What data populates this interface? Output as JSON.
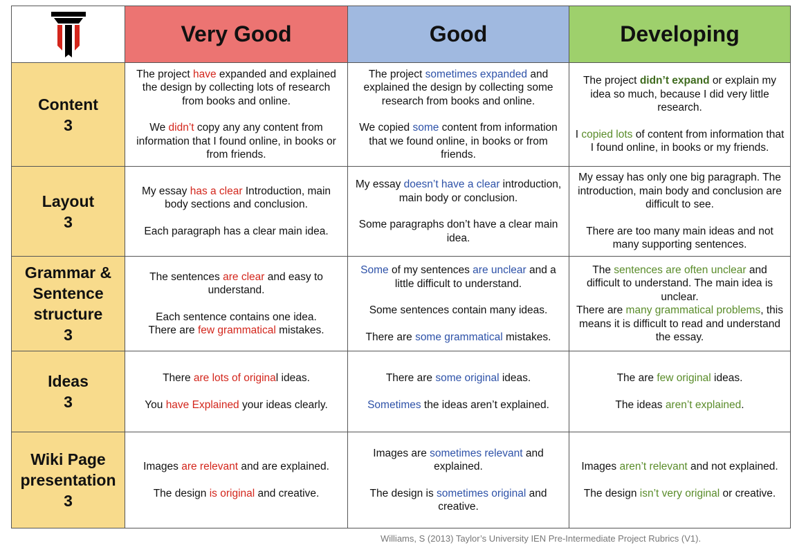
{
  "header": {
    "levels": [
      "Very Good",
      "Good",
      "Developing"
    ]
  },
  "criteria": [
    {
      "name_lines": [
        "Content"
      ],
      "score": "3"
    },
    {
      "name_lines": [
        "Layout"
      ],
      "score": "3"
    },
    {
      "name_lines": [
        "Grammar &",
        "Sentence",
        "structure"
      ],
      "score": "3"
    },
    {
      "name_lines": [
        "Ideas"
      ],
      "score": "3"
    },
    {
      "name_lines": [
        "Wiki Page",
        "presentation"
      ],
      "score": "3"
    }
  ],
  "cells": {
    "content": {
      "very_good": {
        "p1": [
          "The project ",
          "have",
          " expanded and explained the design by collecting lots of research from books and online."
        ],
        "p2": [
          "We ",
          "didn’t",
          " copy any any content from information that I found online, in books or from friends."
        ]
      },
      "good": {
        "p1": [
          "The project ",
          "sometimes expanded",
          " and explained the design by collecting some research from books and online."
        ],
        "p2": [
          "We copied ",
          "some",
          " content from information that we found online, in books or from friends."
        ]
      },
      "developing": {
        "p1": [
          "The project ",
          "didn’t expand",
          " or explain my idea so much, because I did very little research."
        ],
        "p2": [
          "I ",
          "copied lots",
          " of content from information that I found online, in books or my friends."
        ]
      }
    },
    "layout": {
      "very_good": {
        "p1": [
          "My essay ",
          "has a clear",
          " Introduction, main body sections and conclusion."
        ],
        "p2": "Each paragraph has a clear main idea."
      },
      "good": {
        "p1": [
          "My essay ",
          "doesn’t have a clear",
          " introduction, main body or conclusion."
        ],
        "p2": "Some paragraphs don’t have a clear main idea."
      },
      "developing": {
        "p1": "My essay has only one big paragraph. The introduction, main body and conclusion are difficult to see.",
        "p2": "There are too many main ideas and not many supporting sentences."
      }
    },
    "grammar": {
      "very_good": {
        "p1": [
          "The sentences ",
          "are clear",
          " and easy to understand."
        ],
        "p2a": "Each sentence contains one idea.",
        "p2b": [
          "There are ",
          "few grammatical",
          " mistakes."
        ]
      },
      "good": {
        "p1": [
          "Some",
          " of my sentences ",
          "are unclear",
          " and a little difficult to understand."
        ],
        "p2": "Some sentences contain many ideas.",
        "p3": [
          "There are ",
          "some grammatical",
          " mistakes."
        ]
      },
      "developing": {
        "p1": [
          "The ",
          "sentences are often unclear",
          " and difficult to understand. The main idea is unclear."
        ],
        "p2": [
          "There are ",
          "many grammatical problems",
          ", this means it is difficult to read and understand the essay."
        ]
      }
    },
    "ideas": {
      "very_good": {
        "p1": [
          "There ",
          "are lots of origina",
          "l ideas."
        ],
        "p2": [
          "You ",
          "have Explained",
          " your ideas clearly."
        ]
      },
      "good": {
        "p1": [
          "There are ",
          "some original",
          " ideas."
        ],
        "p2": [
          "Sometimes",
          " the ideas aren’t explained."
        ]
      },
      "developing": {
        "p1": [
          "The are ",
          "few original",
          " ideas."
        ],
        "p2": [
          "The ideas ",
          "aren’t explained",
          "."
        ]
      }
    },
    "wiki": {
      "very_good": {
        "p1": [
          "Images ",
          "are relevant",
          " and are explained."
        ],
        "p2": [
          "The design ",
          "is original",
          " and creative."
        ]
      },
      "good": {
        "p1": [
          "Images are ",
          "sometimes relevant",
          " and explained."
        ],
        "p2": [
          "The design is ",
          "sometimes original",
          " and creative."
        ]
      },
      "developing": {
        "p1": [
          "Images ",
          "aren’t relevant",
          " and not explained."
        ],
        "p2": [
          "The design ",
          "isn’t very original",
          " or creative."
        ]
      }
    }
  },
  "citation": "Williams, S (2013) Taylor’s University IEN Pre-Intermediate Project Rubrics (V1).",
  "logo": {
    "icon": "university-logo-icon",
    "colors": [
      "#000000",
      "#d3261c"
    ]
  }
}
